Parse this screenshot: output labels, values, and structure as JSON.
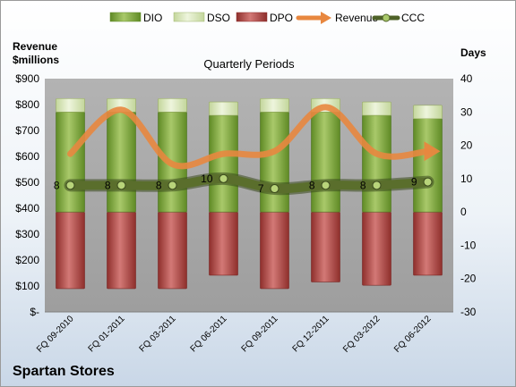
{
  "chart_data": {
    "type": "bar",
    "subtype": "stacked-bar-with-lines",
    "title": "Quarterly Periods",
    "left_axis": {
      "label_line1": "Revenue",
      "label_line2": "$millions",
      "ylim": [
        0,
        900
      ],
      "tick_labels": [
        "$-",
        "$100",
        "$200",
        "$300",
        "$400",
        "$500",
        "$600",
        "$700",
        "$800",
        "$900"
      ]
    },
    "right_axis": {
      "label": "Days",
      "ylim": [
        -30,
        40
      ],
      "tick_labels": [
        "-30",
        "-20",
        "-10",
        "0",
        "10",
        "20",
        "30",
        "40"
      ]
    },
    "categories": [
      "FQ 09-2010",
      "FQ 01-2011",
      "FQ 03-2011",
      "FQ 06-2011",
      "FQ 09-2011",
      "FQ 12-2011",
      "FQ 03-2012",
      "FQ 06-2012"
    ],
    "series": [
      {
        "name": "DIO",
        "axis": "right",
        "values": [
          30,
          30,
          30,
          29,
          30,
          30,
          29,
          28
        ]
      },
      {
        "name": "DSO",
        "axis": "right",
        "values": [
          4,
          4,
          4,
          4,
          4,
          4,
          4,
          4
        ]
      },
      {
        "name": "DPO",
        "axis": "right",
        "values": [
          -23,
          -23,
          -23,
          -19,
          -23,
          -21,
          -22,
          -19
        ]
      },
      {
        "name": "Revenue",
        "axis": "left",
        "values": [
          610,
          780,
          570,
          610,
          620,
          790,
          610,
          620
        ]
      },
      {
        "name": "CCC",
        "axis": "right",
        "values": [
          8,
          8,
          8,
          10,
          7,
          8,
          8,
          9
        ]
      }
    ],
    "ccc_labels": [
      "8",
      "8",
      "8",
      "10",
      "7",
      "8",
      "8",
      "9"
    ],
    "legend": {
      "placement": "top",
      "items": [
        "DIO",
        "DSO",
        "DPO",
        "Revenue",
        "CCC"
      ]
    },
    "grid": false,
    "colors": {
      "dio": "#7aa33a",
      "dio_light": "#a9c96a",
      "dso": "#d8e6b5",
      "dpo": "#a8403d",
      "dpo_light": "#cf7370",
      "revenue": "#e8873f",
      "ccc": "#4f6228",
      "plot_bg": "#a6a6a6"
    }
  },
  "footer": {
    "company": "Spartan Stores"
  }
}
